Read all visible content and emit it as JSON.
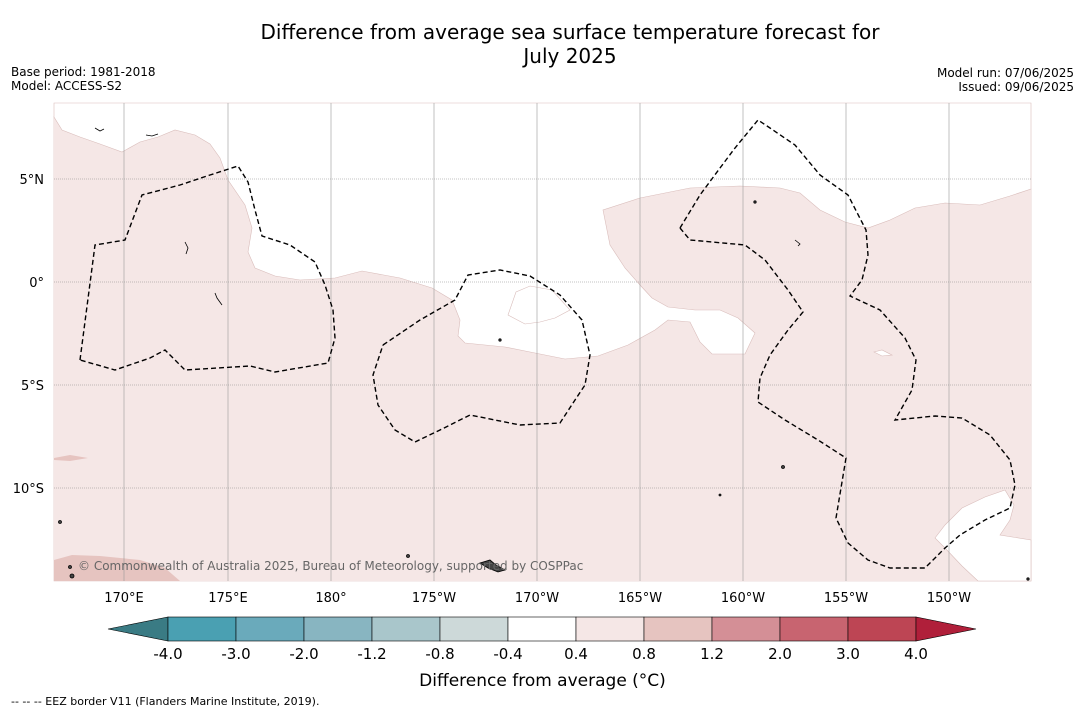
{
  "title_line1": "Difference from average sea surface temperature forecast for",
  "title_line2": "July 2025",
  "base_period": "Base period: 1981-2018",
  "model": "Model: ACCESS-S2",
  "model_run": "Model run: 07/06/2025",
  "issued": "Issued: 09/06/2025",
  "lat_labels": [
    "5°N",
    "0°",
    "5°S",
    "10°S"
  ],
  "lon_labels": [
    "170°E",
    "175°E",
    "180°",
    "175°W",
    "170°W",
    "165°W",
    "160°W",
    "155°W",
    "150°W"
  ],
  "copyright": "© Commonwealth of Australia 2025, Bureau of Meteorology, supported by COSPPac",
  "colorbar": {
    "ticks": [
      "-4.0",
      "-3.0",
      "-2.0",
      "-1.2",
      "-0.8",
      "-0.4",
      "0.4",
      "0.8",
      "1.2",
      "2.0",
      "3.0",
      "4.0"
    ],
    "colors": {
      "below_min": "#3a7b84",
      "bins": [
        "#4aa0b2",
        "#6aaabb",
        "#88b5c1",
        "#a9c6cb",
        "#cdd9d9",
        "#ffffff",
        "#f5e7e6",
        "#e6c4c0",
        "#d48f96",
        "#c86470",
        "#bd4554"
      ],
      "above_max": "#b01f3a"
    },
    "label": "Difference from average (°C)"
  },
  "footnote": "-- -- -- EEZ border V11 (Flanders Marine Institute, 2019)."
}
